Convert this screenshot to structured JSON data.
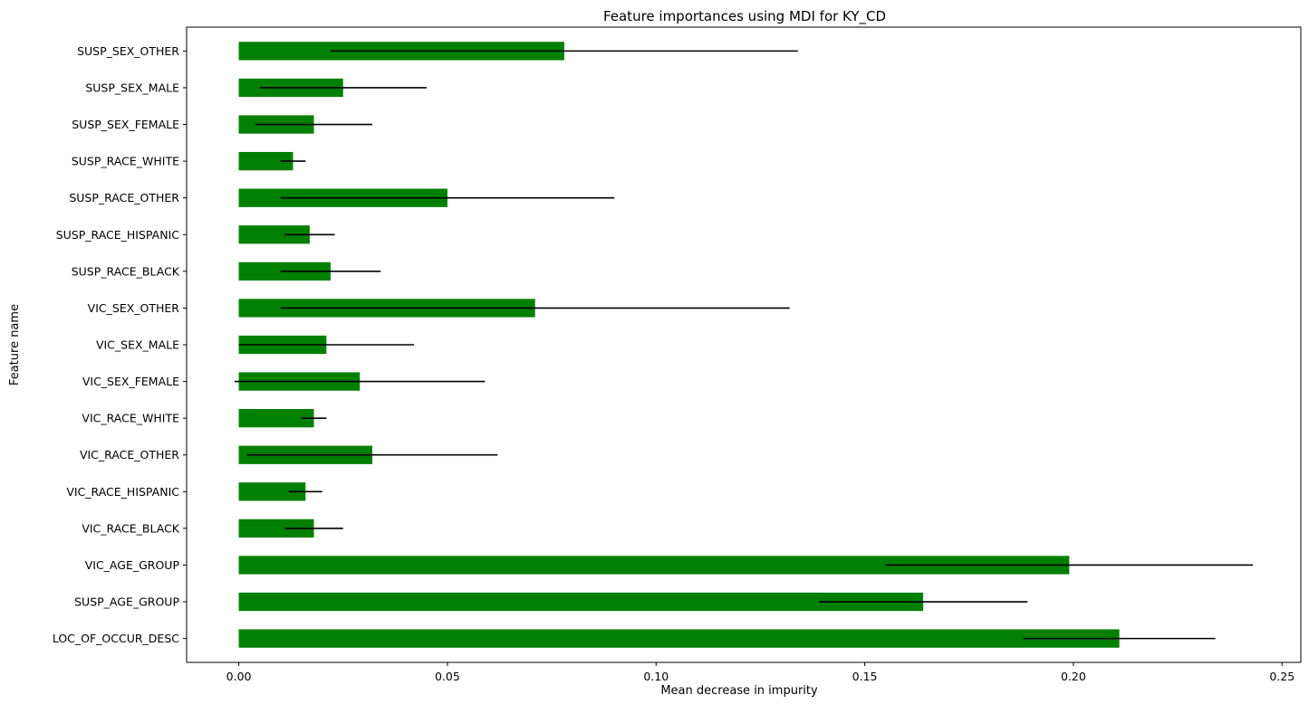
{
  "chart_data": {
    "type": "bar",
    "orientation": "horizontal",
    "title": "Feature importances using MDI for KY_CD",
    "xlabel": "Mean decrease in impurity",
    "ylabel": "Feature name",
    "xlim": [
      -0.0125,
      0.2545
    ],
    "xticks": [
      0.0,
      0.05,
      0.1,
      0.15,
      0.2,
      0.25
    ],
    "xtick_labels": [
      "0.00",
      "0.05",
      "0.10",
      "0.15",
      "0.20",
      "0.25"
    ],
    "bar_color": "#008000",
    "errorbar_color": "#000000",
    "categories": [
      "LOC_OF_OCCUR_DESC",
      "SUSP_AGE_GROUP",
      "VIC_AGE_GROUP",
      "VIC_RACE_BLACK",
      "VIC_RACE_HISPANIC",
      "VIC_RACE_OTHER",
      "VIC_RACE_WHITE",
      "VIC_SEX_FEMALE",
      "VIC_SEX_MALE",
      "VIC_SEX_OTHER",
      "SUSP_RACE_BLACK",
      "SUSP_RACE_HISPANIC",
      "SUSP_RACE_OTHER",
      "SUSP_RACE_WHITE",
      "SUSP_SEX_FEMALE",
      "SUSP_SEX_MALE",
      "SUSP_SEX_OTHER"
    ],
    "values": [
      0.211,
      0.164,
      0.199,
      0.018,
      0.016,
      0.032,
      0.018,
      0.029,
      0.021,
      0.071,
      0.022,
      0.017,
      0.05,
      0.013,
      0.018,
      0.025,
      0.078
    ],
    "errors": [
      0.023,
      0.025,
      0.044,
      0.007,
      0.004,
      0.03,
      0.003,
      0.03,
      0.021,
      0.061,
      0.012,
      0.006,
      0.04,
      0.003,
      0.014,
      0.02,
      0.056
    ],
    "grid": false,
    "legend": "none"
  }
}
